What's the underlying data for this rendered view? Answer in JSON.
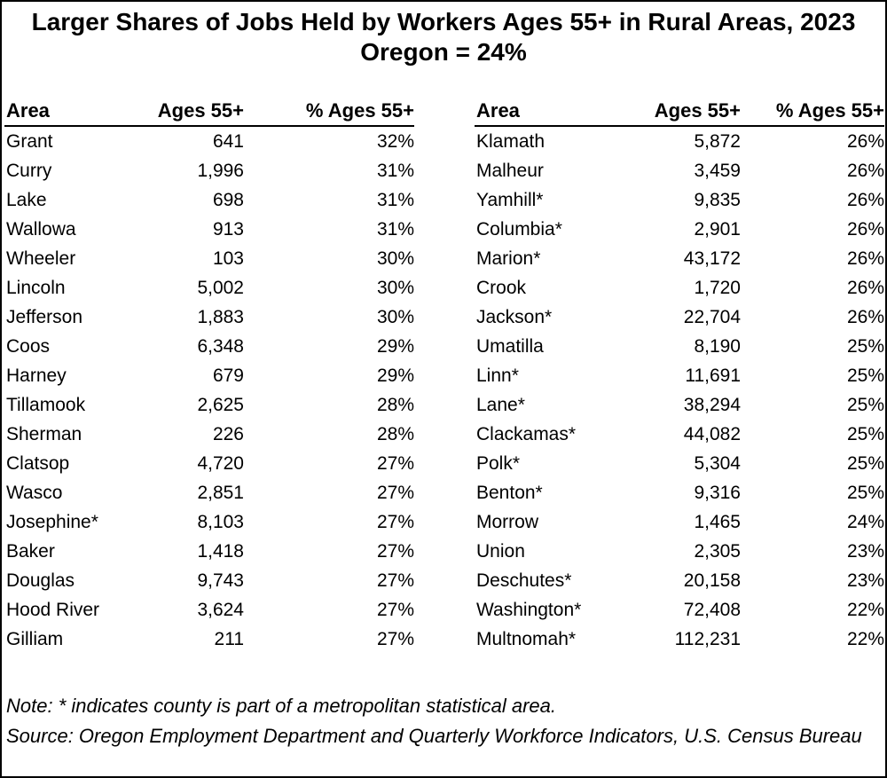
{
  "figure": {
    "title_line1": "Larger Shares of Jobs Held by Workers Ages 55+ in Rural Areas, 2023",
    "title_line2": "Oregon = 24%"
  },
  "left_table": {
    "headers": [
      "Area",
      "Ages 55+",
      "% Ages 55+"
    ],
    "rows": [
      [
        "Grant",
        "641",
        "32%"
      ],
      [
        "Curry",
        "1,996",
        "31%"
      ],
      [
        "Lake",
        "698",
        "31%"
      ],
      [
        "Wallowa",
        "913",
        "31%"
      ],
      [
        "Wheeler",
        "103",
        "30%"
      ],
      [
        "Lincoln",
        "5,002",
        "30%"
      ],
      [
        "Jefferson",
        "1,883",
        "30%"
      ],
      [
        "Coos",
        "6,348",
        "29%"
      ],
      [
        "Harney",
        "679",
        "29%"
      ],
      [
        "Tillamook",
        "2,625",
        "28%"
      ],
      [
        "Sherman",
        "226",
        "28%"
      ],
      [
        "Clatsop",
        "4,720",
        "27%"
      ],
      [
        "Wasco",
        "2,851",
        "27%"
      ],
      [
        "Josephine*",
        "8,103",
        "27%"
      ],
      [
        "Baker",
        "1,418",
        "27%"
      ],
      [
        "Douglas",
        "9,743",
        "27%"
      ],
      [
        "Hood River",
        "3,624",
        "27%"
      ],
      [
        "Gilliam",
        "211",
        "27%"
      ]
    ]
  },
  "right_table": {
    "headers": [
      "Area",
      "Ages 55+",
      "% Ages 55+"
    ],
    "rows": [
      [
        "Klamath",
        "5,872",
        "26%"
      ],
      [
        "Malheur",
        "3,459",
        "26%"
      ],
      [
        "Yamhill*",
        "9,835",
        "26%"
      ],
      [
        "Columbia*",
        "2,901",
        "26%"
      ],
      [
        "Marion*",
        "43,172",
        "26%"
      ],
      [
        "Crook",
        "1,720",
        "26%"
      ],
      [
        "Jackson*",
        "22,704",
        "26%"
      ],
      [
        "Umatilla",
        "8,190",
        "25%"
      ],
      [
        "Linn*",
        "11,691",
        "25%"
      ],
      [
        "Lane*",
        "38,294",
        "25%"
      ],
      [
        "Clackamas*",
        "44,082",
        "25%"
      ],
      [
        "Polk*",
        "5,304",
        "25%"
      ],
      [
        "Benton*",
        "9,316",
        "25%"
      ],
      [
        "Morrow",
        "1,465",
        "24%"
      ],
      [
        "Union",
        "2,305",
        "23%"
      ],
      [
        "Deschutes*",
        "20,158",
        "23%"
      ],
      [
        "Washington*",
        "72,408",
        "22%"
      ],
      [
        "Multnomah*",
        "112,231",
        "22%"
      ]
    ]
  },
  "footer": {
    "note": "Note: * indicates county is part of a metropolitan statistical area.",
    "source": "Source: Oregon Employment Department and Quarterly Workforce Indicators, U.S. Census Bureau"
  },
  "colors": {
    "text": "#000000",
    "background": "#ffffff",
    "border": "#000000"
  },
  "chart_data": {
    "type": "table",
    "title": "Larger Shares of Jobs Held by Workers Ages 55+ in Rural Areas, 2023",
    "subtitle": "Oregon = 24%",
    "oregon_statewide_pct": 24,
    "columns": [
      "Area",
      "Ages 55+",
      "% Ages 55+"
    ],
    "rows": [
      {
        "area": "Grant",
        "ages_55_plus": 641,
        "pct_55_plus": 32
      },
      {
        "area": "Curry",
        "ages_55_plus": 1996,
        "pct_55_plus": 31
      },
      {
        "area": "Lake",
        "ages_55_plus": 698,
        "pct_55_plus": 31
      },
      {
        "area": "Wallowa",
        "ages_55_plus": 913,
        "pct_55_plus": 31
      },
      {
        "area": "Wheeler",
        "ages_55_plus": 103,
        "pct_55_plus": 30
      },
      {
        "area": "Lincoln",
        "ages_55_plus": 5002,
        "pct_55_plus": 30
      },
      {
        "area": "Jefferson",
        "ages_55_plus": 1883,
        "pct_55_plus": 30
      },
      {
        "area": "Coos",
        "ages_55_plus": 6348,
        "pct_55_plus": 29
      },
      {
        "area": "Harney",
        "ages_55_plus": 679,
        "pct_55_plus": 29
      },
      {
        "area": "Tillamook",
        "ages_55_plus": 2625,
        "pct_55_plus": 28
      },
      {
        "area": "Sherman",
        "ages_55_plus": 226,
        "pct_55_plus": 28
      },
      {
        "area": "Clatsop",
        "ages_55_plus": 4720,
        "pct_55_plus": 27
      },
      {
        "area": "Wasco",
        "ages_55_plus": 2851,
        "pct_55_plus": 27
      },
      {
        "area": "Josephine*",
        "ages_55_plus": 8103,
        "pct_55_plus": 27
      },
      {
        "area": "Baker",
        "ages_55_plus": 1418,
        "pct_55_plus": 27
      },
      {
        "area": "Douglas",
        "ages_55_plus": 9743,
        "pct_55_plus": 27
      },
      {
        "area": "Hood River",
        "ages_55_plus": 3624,
        "pct_55_plus": 27
      },
      {
        "area": "Gilliam",
        "ages_55_plus": 211,
        "pct_55_plus": 27
      },
      {
        "area": "Klamath",
        "ages_55_plus": 5872,
        "pct_55_plus": 26
      },
      {
        "area": "Malheur",
        "ages_55_plus": 3459,
        "pct_55_plus": 26
      },
      {
        "area": "Yamhill*",
        "ages_55_plus": 9835,
        "pct_55_plus": 26
      },
      {
        "area": "Columbia*",
        "ages_55_plus": 2901,
        "pct_55_plus": 26
      },
      {
        "area": "Marion*",
        "ages_55_plus": 43172,
        "pct_55_plus": 26
      },
      {
        "area": "Crook",
        "ages_55_plus": 1720,
        "pct_55_plus": 26
      },
      {
        "area": "Jackson*",
        "ages_55_plus": 22704,
        "pct_55_plus": 26
      },
      {
        "area": "Umatilla",
        "ages_55_plus": 8190,
        "pct_55_plus": 25
      },
      {
        "area": "Linn*",
        "ages_55_plus": 11691,
        "pct_55_plus": 25
      },
      {
        "area": "Lane*",
        "ages_55_plus": 38294,
        "pct_55_plus": 25
      },
      {
        "area": "Clackamas*",
        "ages_55_plus": 44082,
        "pct_55_plus": 25
      },
      {
        "area": "Polk*",
        "ages_55_plus": 5304,
        "pct_55_plus": 25
      },
      {
        "area": "Benton*",
        "ages_55_plus": 9316,
        "pct_55_plus": 25
      },
      {
        "area": "Morrow",
        "ages_55_plus": 1465,
        "pct_55_plus": 24
      },
      {
        "area": "Union",
        "ages_55_plus": 2305,
        "pct_55_plus": 23
      },
      {
        "area": "Deschutes*",
        "ages_55_plus": 20158,
        "pct_55_plus": 23
      },
      {
        "area": "Washington*",
        "ages_55_plus": 72408,
        "pct_55_plus": 22
      },
      {
        "area": "Multnomah*",
        "ages_55_plus": 112231,
        "pct_55_plus": 22
      }
    ],
    "note": "Note: * indicates county is part of a metropolitan statistical area.",
    "source": "Source: Oregon Employment Department and Quarterly Workforce Indicators, U.S. Census Bureau",
    "layout": {
      "grid": false,
      "legend": false,
      "two_column_table": true
    }
  }
}
